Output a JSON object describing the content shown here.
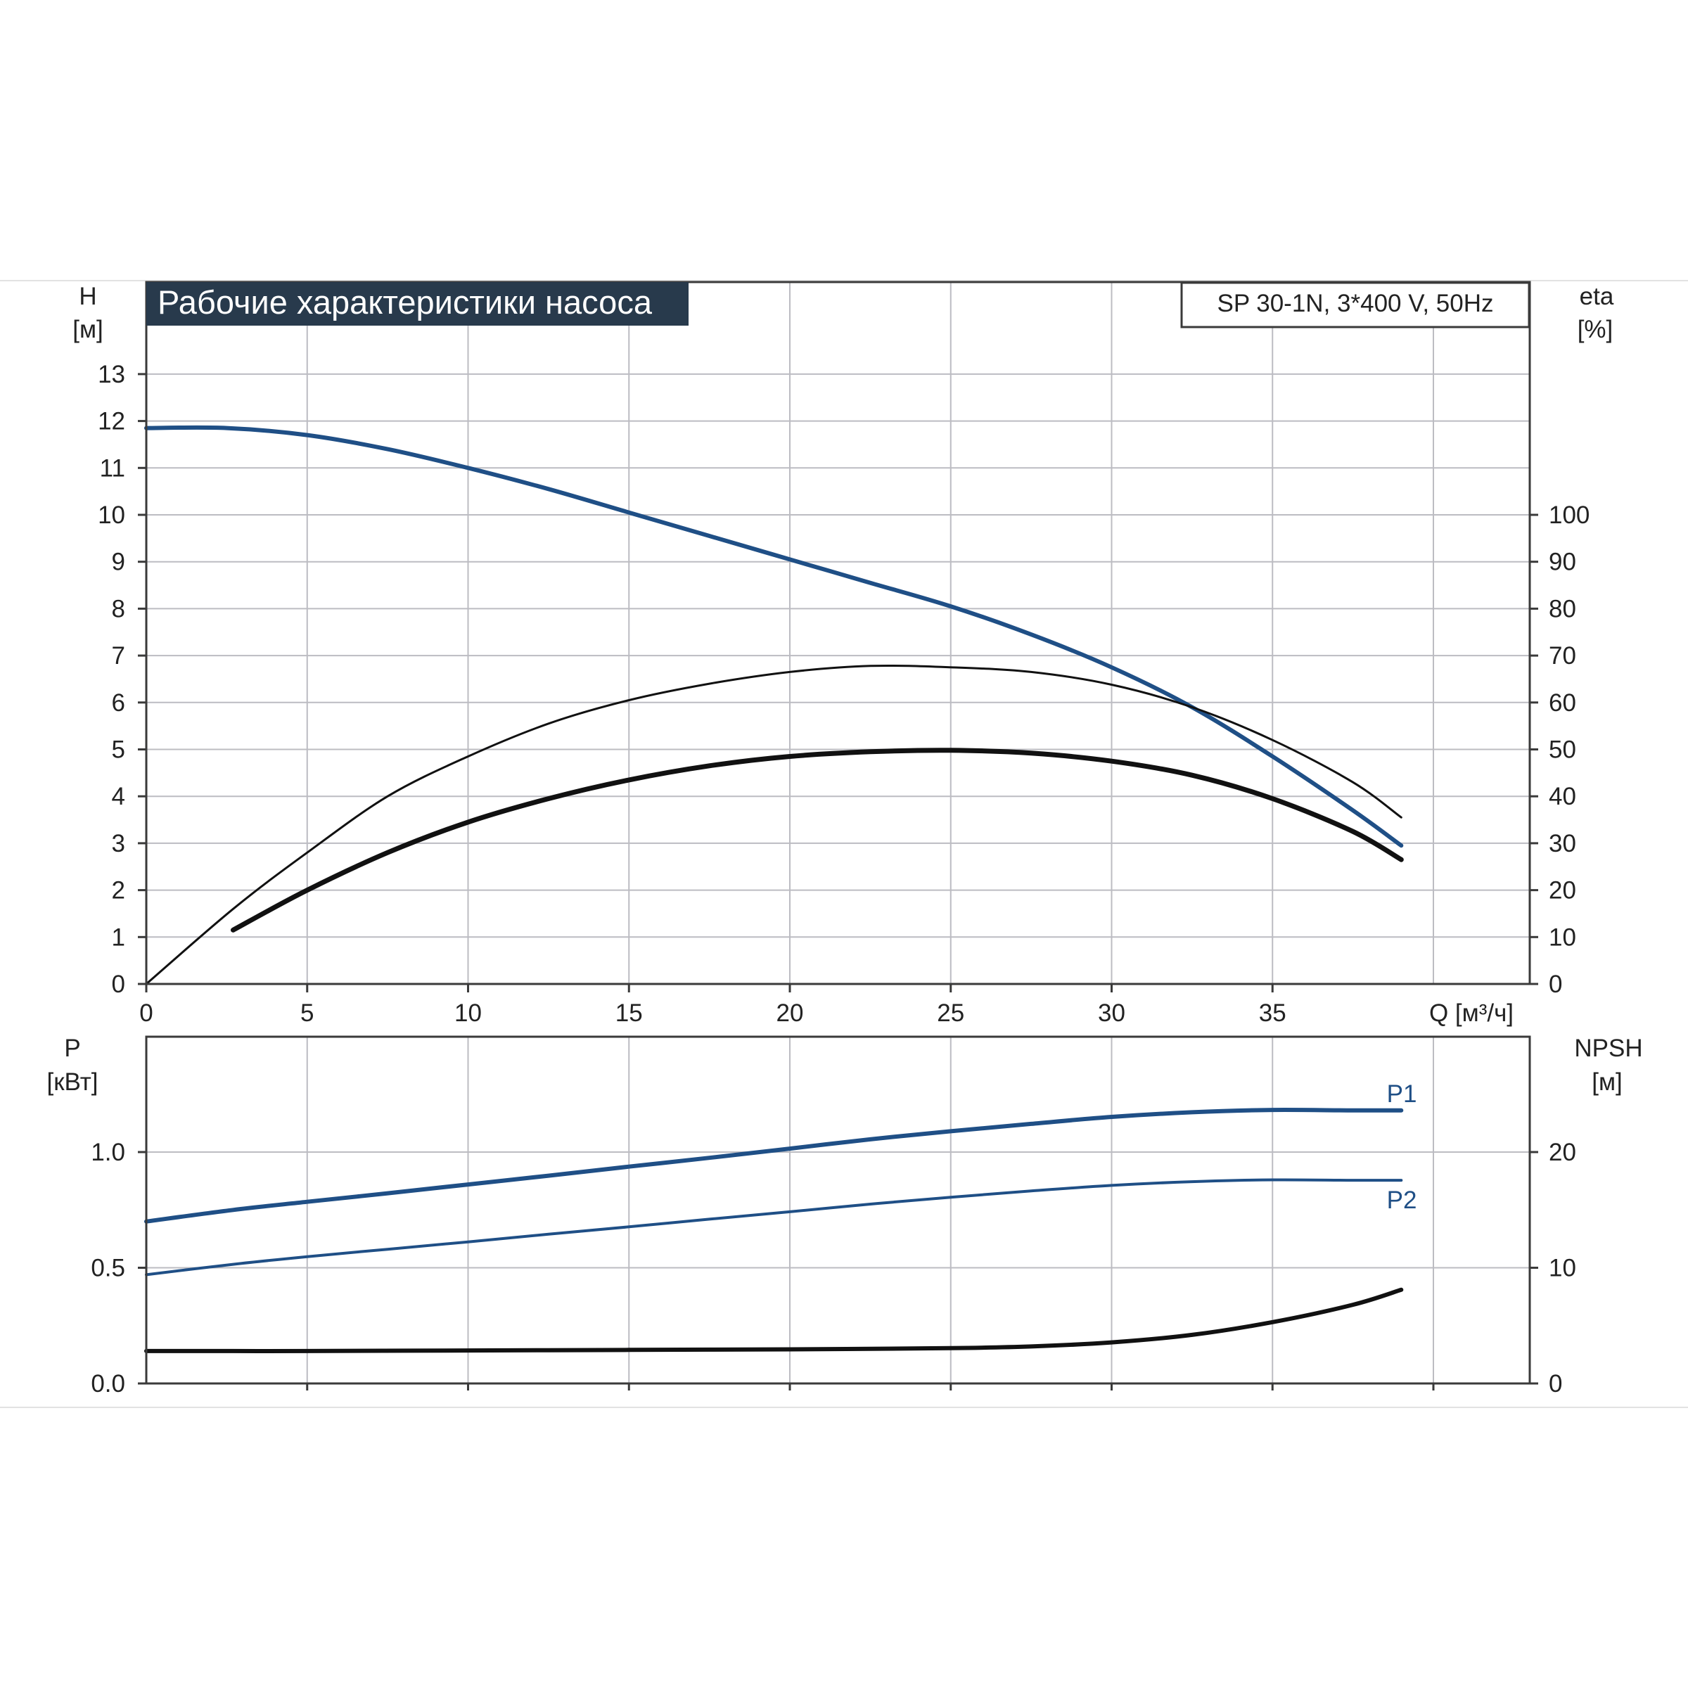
{
  "header": {
    "title": "Рабочие характеристики насоса",
    "model": "SP 30-1N, 3*400 V, 50Hz"
  },
  "colors": {
    "blue": "#1f4f86",
    "black": "#111111",
    "title_bg": "#283a4c"
  },
  "chart_data": [
    {
      "type": "line",
      "name": "top",
      "xlabel": "Q [м³/ч]",
      "x_ticks": [
        "0",
        "5",
        "10",
        "15",
        "20",
        "25",
        "30",
        "35"
      ],
      "xlim": [
        0,
        43
      ],
      "left_axis": {
        "label_line1": "H",
        "label_line2": "[м]",
        "ticks": [
          "0",
          "1",
          "2",
          "3",
          "4",
          "5",
          "6",
          "7",
          "8",
          "9",
          "10",
          "11",
          "12",
          "13"
        ],
        "ylim": [
          0,
          14
        ]
      },
      "right_axis": {
        "label_line1": "eta",
        "label_line2": "[%]",
        "ticks": [
          "0",
          "10",
          "20",
          "30",
          "40",
          "50",
          "60",
          "70",
          "80",
          "90",
          "100"
        ],
        "ylim": [
          0,
          140
        ]
      },
      "grid": true,
      "series": [
        {
          "key": "H",
          "axis": "left",
          "color": "#1f4f86",
          "width": 6,
          "x": [
            0,
            2.5,
            5,
            7.5,
            10,
            12.5,
            15,
            17.5,
            20,
            22.5,
            25,
            27.5,
            30,
            32.5,
            35,
            37.5,
            39
          ],
          "y": [
            11.85,
            11.85,
            11.7,
            11.4,
            11.0,
            10.55,
            10.05,
            9.55,
            9.05,
            8.55,
            8.05,
            7.45,
            6.75,
            5.9,
            4.85,
            3.7,
            2.95
          ]
        },
        {
          "key": "eta_thin",
          "axis": "right",
          "color": "#111111",
          "width": 3,
          "x": [
            0,
            2.7,
            5,
            7.5,
            10,
            12.5,
            15,
            17.5,
            20,
            22.5,
            25,
            27.5,
            30,
            32.5,
            35,
            37.5,
            39
          ],
          "y": [
            0,
            16,
            28,
            40,
            48.5,
            55.5,
            60.5,
            64,
            66.5,
            67.8,
            67.5,
            66.5,
            63.8,
            59,
            52,
            43,
            35.5
          ]
        },
        {
          "key": "eta_thick",
          "axis": "right",
          "color": "#111111",
          "width": 7,
          "x": [
            2.7,
            5,
            7.5,
            10,
            12.5,
            15,
            17.5,
            20,
            22.5,
            25,
            27.5,
            30,
            32.5,
            35,
            37.5,
            39
          ],
          "y": [
            11.5,
            20,
            28,
            34.5,
            39.5,
            43.5,
            46.5,
            48.5,
            49.5,
            49.8,
            49.2,
            47.5,
            44.5,
            39.5,
            32.5,
            26.5
          ]
        }
      ]
    },
    {
      "type": "line",
      "name": "bottom",
      "xlim": [
        0,
        43
      ],
      "left_axis": {
        "label_line1": "P",
        "label_line2": "[кВт]",
        "ticks": [
          "0.0",
          "0.5",
          "1.0"
        ],
        "ylim": [
          0,
          1.5
        ]
      },
      "right_axis": {
        "label_line1": "NPSH",
        "label_line2": "[м]",
        "ticks": [
          "0",
          "10",
          "20"
        ],
        "ylim": [
          0,
          30
        ]
      },
      "grid": true,
      "series": [
        {
          "key": "P1",
          "label": "P1",
          "axis": "left",
          "color": "#1f4f86",
          "width": 6,
          "x": [
            0,
            2.7,
            5,
            7.5,
            10,
            12.5,
            15,
            17.5,
            20,
            22.5,
            25,
            27.5,
            30,
            32.5,
            35,
            37.5,
            39
          ],
          "y": [
            0.7,
            0.75,
            0.785,
            0.822,
            0.86,
            0.898,
            0.937,
            0.975,
            1.015,
            1.055,
            1.09,
            1.122,
            1.152,
            1.172,
            1.182,
            1.18,
            1.18
          ]
        },
        {
          "key": "P2",
          "label": "P2",
          "axis": "left",
          "color": "#1f4f86",
          "width": 4,
          "x": [
            0,
            2.7,
            5,
            7.5,
            10,
            12.5,
            15,
            17.5,
            20,
            22.5,
            25,
            27.5,
            30,
            32.5,
            35,
            37.5,
            39
          ],
          "y": [
            0.47,
            0.515,
            0.548,
            0.58,
            0.612,
            0.645,
            0.677,
            0.71,
            0.742,
            0.775,
            0.805,
            0.832,
            0.856,
            0.872,
            0.88,
            0.878,
            0.878
          ]
        },
        {
          "key": "NPSH",
          "axis": "right",
          "color": "#111111",
          "width": 6,
          "x": [
            0,
            2.7,
            5,
            10,
            15,
            20,
            25,
            27.5,
            30,
            32.5,
            35,
            37.5,
            39
          ],
          "y": [
            2.8,
            2.8,
            2.8,
            2.85,
            2.9,
            2.95,
            3.05,
            3.2,
            3.55,
            4.2,
            5.3,
            6.8,
            8.1
          ]
        }
      ]
    }
  ]
}
